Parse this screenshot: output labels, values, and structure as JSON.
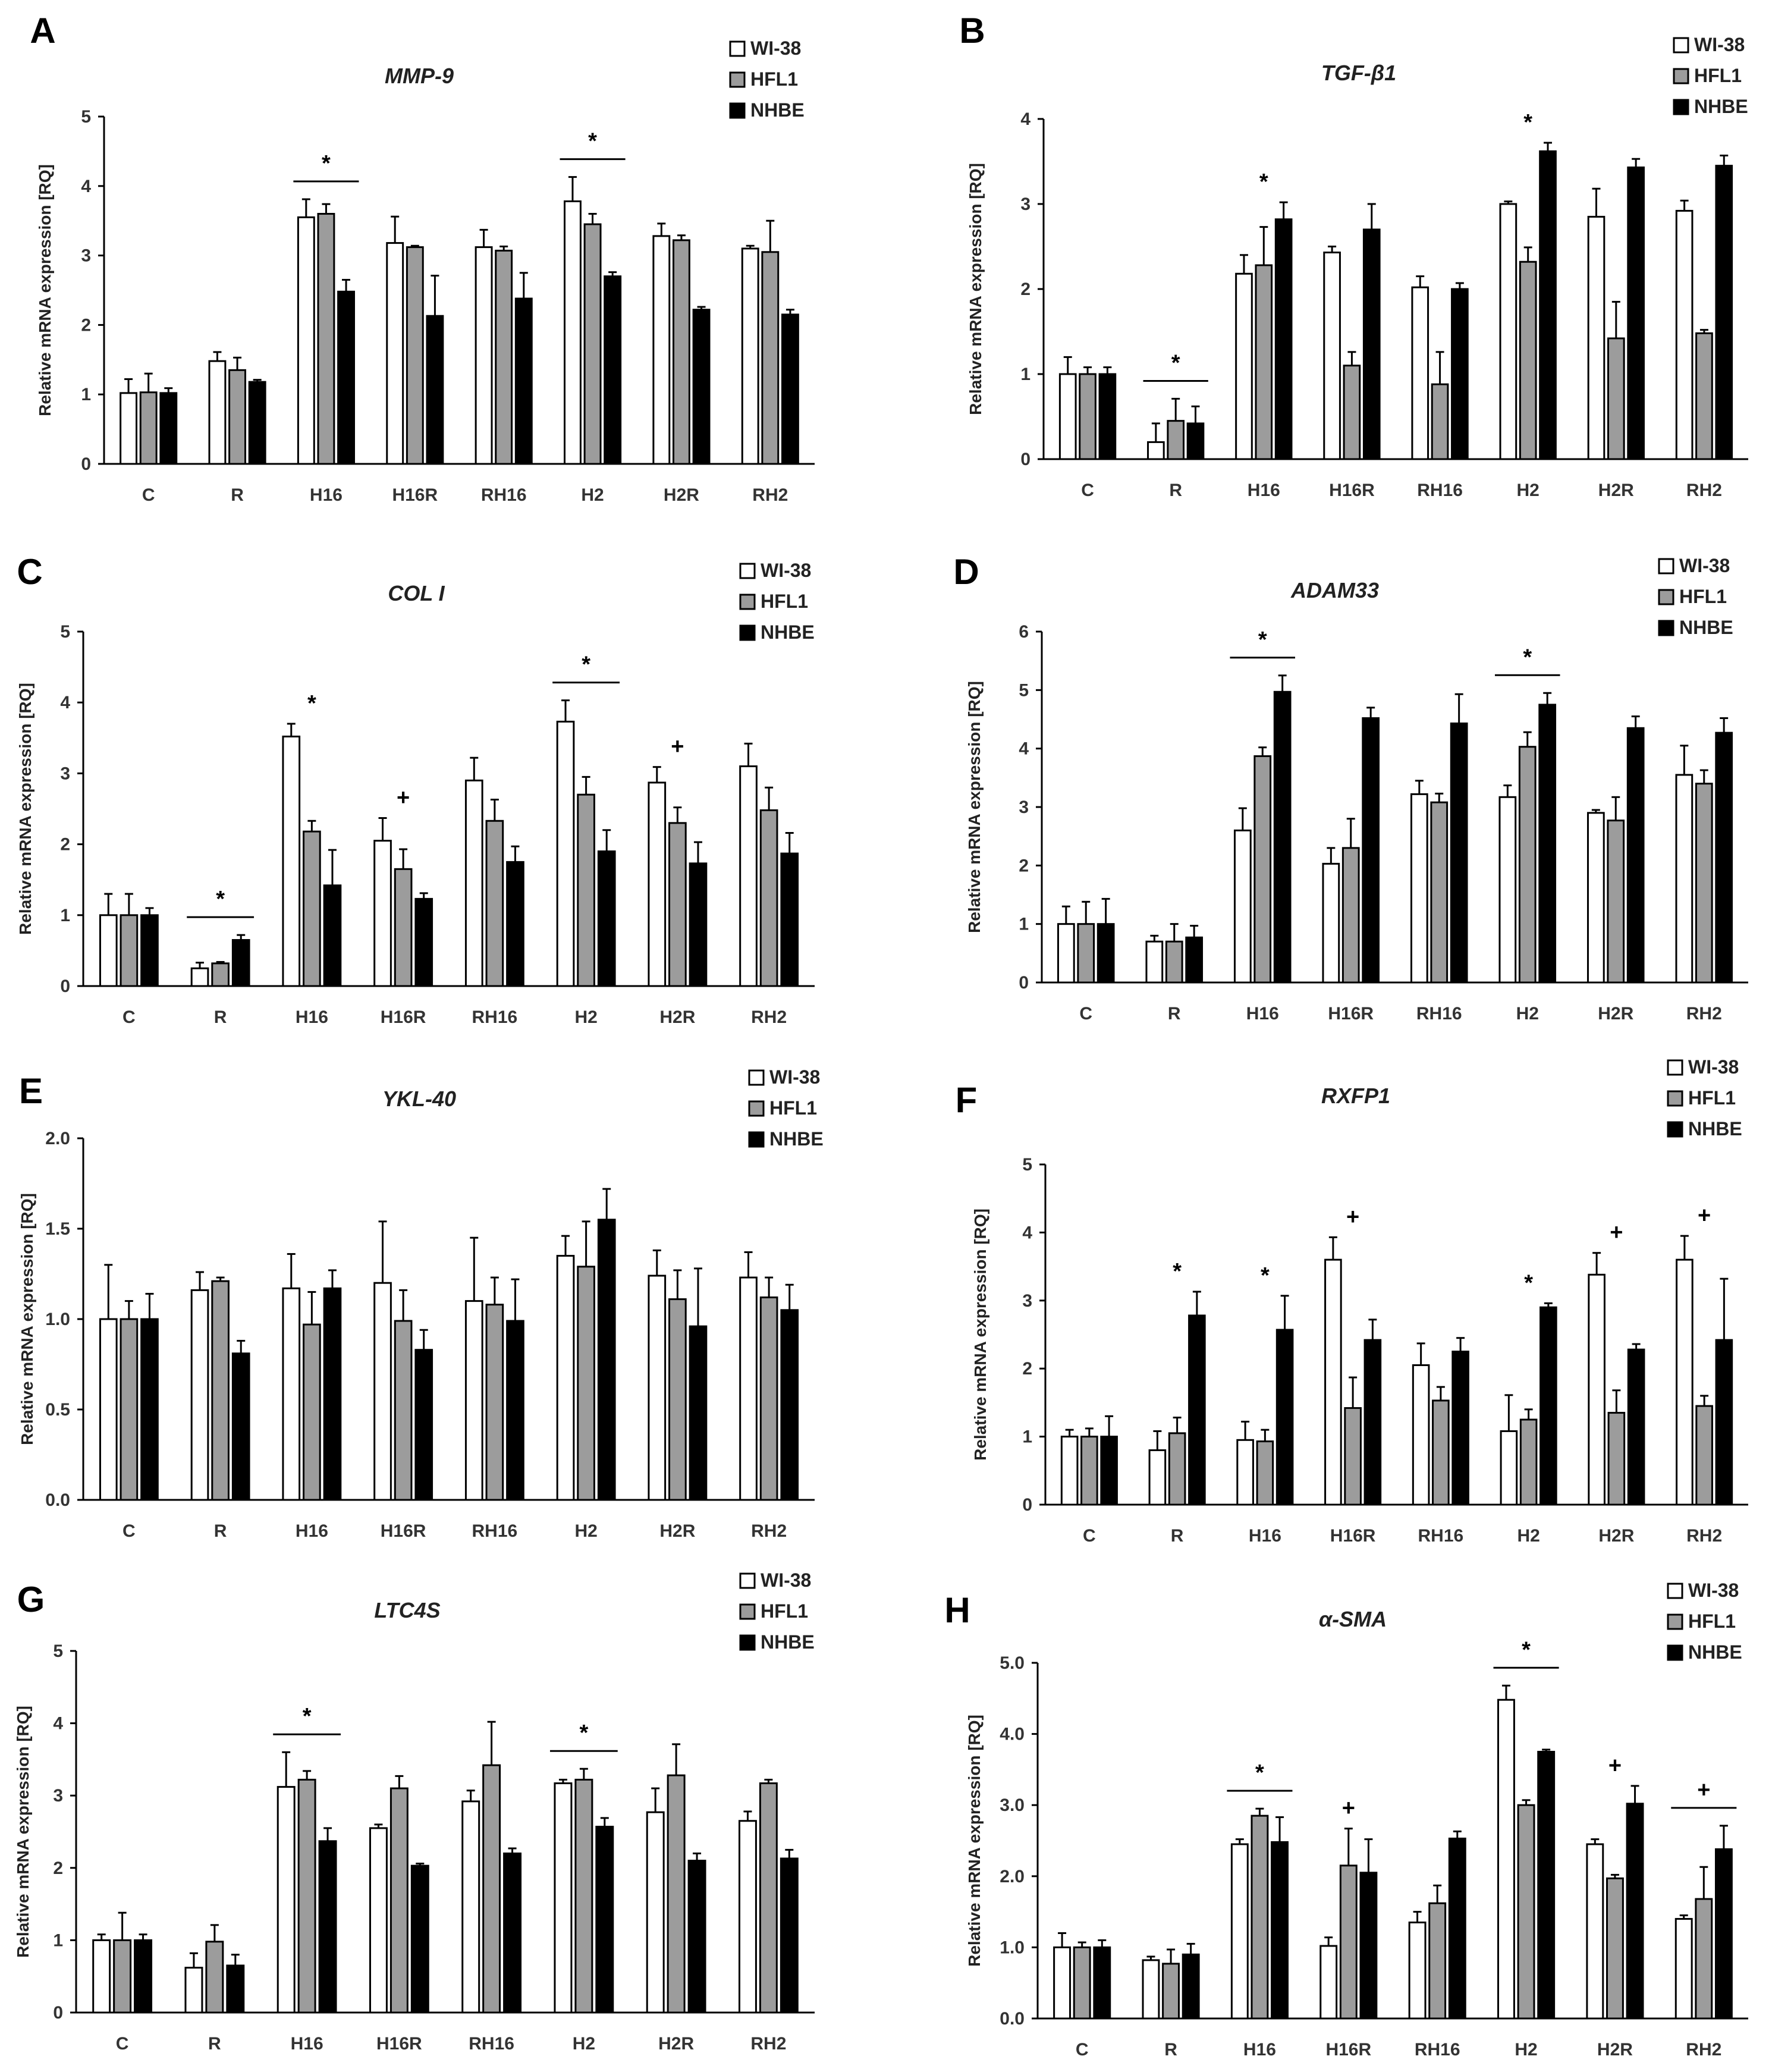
{
  "colors": {
    "WI-38": "#ffffff",
    "HFL1": "#9c9c9c",
    "NHBE": "#000000",
    "axis": "#000000"
  },
  "chart_data": [
    {
      "panel": "A",
      "type": "bar",
      "title": "MMP-9",
      "ylabel": "Relative mRNA expression [RQ]",
      "categories": [
        "C",
        "R",
        "H16",
        "H16R",
        "RH16",
        "H2",
        "H2R",
        "RH2"
      ],
      "ylim": [
        0,
        5
      ],
      "yticks": [
        "0",
        "1",
        "2",
        "3",
        "4",
        "5"
      ],
      "legend": [
        "WI-38",
        "HFL1",
        "NHBE"
      ],
      "series": [
        {
          "name": "WI-38",
          "values": [
            1.02,
            1.48,
            3.55,
            3.18,
            3.12,
            3.78,
            3.28,
            3.1
          ],
          "errors": [
            0.2,
            0.13,
            0.26,
            0.38,
            0.25,
            0.35,
            0.18,
            0.04
          ]
        },
        {
          "name": "HFL1",
          "values": [
            1.03,
            1.35,
            3.6,
            3.12,
            3.07,
            3.45,
            3.22,
            3.05
          ],
          "errors": [
            0.27,
            0.18,
            0.14,
            0.02,
            0.06,
            0.15,
            0.07,
            0.45
          ]
        },
        {
          "name": "NHBE",
          "values": [
            1.02,
            1.18,
            2.48,
            2.13,
            2.38,
            2.7,
            2.22,
            2.15
          ],
          "errors": [
            0.07,
            0.03,
            0.17,
            0.58,
            0.37,
            0.06,
            0.04,
            0.07
          ]
        }
      ],
      "annotations": [
        {
          "text": "*",
          "category": "H16",
          "line": true
        },
        {
          "text": "*",
          "category": "H2",
          "line": true
        }
      ]
    },
    {
      "panel": "B",
      "type": "bar",
      "title": "TGF-β1",
      "ylabel": "Relative mRNA expression [RQ]",
      "categories": [
        "C",
        "R",
        "H16",
        "H16R",
        "RH16",
        "H2",
        "H2R",
        "RH2"
      ],
      "ylim": [
        0,
        4
      ],
      "yticks": [
        "0",
        "1",
        "2",
        "3",
        "4"
      ],
      "legend": [
        "WI-38",
        "HFL1",
        "NHBE"
      ],
      "series": [
        {
          "name": "WI-38",
          "values": [
            1.0,
            0.2,
            2.18,
            2.43,
            2.02,
            3.0,
            2.85,
            2.92
          ],
          "errors": [
            0.2,
            0.22,
            0.22,
            0.07,
            0.13,
            0.03,
            0.33,
            0.12
          ]
        },
        {
          "name": "HFL1",
          "values": [
            1.0,
            0.45,
            2.28,
            1.1,
            0.88,
            2.32,
            1.42,
            1.48
          ],
          "errors": [
            0.08,
            0.26,
            0.45,
            0.16,
            0.38,
            0.17,
            0.43,
            0.04
          ]
        },
        {
          "name": "NHBE",
          "values": [
            1.0,
            0.42,
            2.82,
            2.7,
            2.0,
            3.62,
            3.43,
            3.45
          ],
          "errors": [
            0.08,
            0.2,
            0.2,
            0.3,
            0.07,
            0.1,
            0.1,
            0.12
          ]
        }
      ],
      "annotations": [
        {
          "text": "*",
          "category": "R",
          "line": true
        },
        {
          "text": "*",
          "category": "H16",
          "line": false
        },
        {
          "text": "*",
          "category": "H2",
          "line": false
        }
      ]
    },
    {
      "panel": "C",
      "type": "bar",
      "title": "COL I",
      "ylabel": "Relative mRNA expression [RQ]",
      "categories": [
        "C",
        "R",
        "H16",
        "H16R",
        "RH16",
        "H2",
        "H2R",
        "RH2"
      ],
      "ylim": [
        0,
        5
      ],
      "yticks": [
        "0",
        "1",
        "2",
        "3",
        "4",
        "5"
      ],
      "legend": [
        "WI-38",
        "HFL1",
        "NHBE"
      ],
      "series": [
        {
          "name": "WI-38",
          "values": [
            1.0,
            0.25,
            3.52,
            2.05,
            2.9,
            3.73,
            2.87,
            3.1
          ],
          "errors": [
            0.3,
            0.08,
            0.18,
            0.32,
            0.32,
            0.3,
            0.22,
            0.32
          ]
        },
        {
          "name": "HFL1",
          "values": [
            1.0,
            0.32,
            2.18,
            1.65,
            2.33,
            2.7,
            2.3,
            2.48
          ],
          "errors": [
            0.3,
            0.02,
            0.15,
            0.28,
            0.3,
            0.25,
            0.22,
            0.32
          ]
        },
        {
          "name": "NHBE",
          "values": [
            1.0,
            0.65,
            1.42,
            1.23,
            1.75,
            1.9,
            1.73,
            1.87
          ],
          "errors": [
            0.1,
            0.07,
            0.5,
            0.08,
            0.22,
            0.3,
            0.3,
            0.29
          ]
        }
      ],
      "annotations": [
        {
          "text": "*",
          "category": "R",
          "line": true
        },
        {
          "text": "*",
          "category": "H16",
          "line": false
        },
        {
          "text": "+",
          "category": "H16R",
          "line": false
        },
        {
          "text": "*",
          "category": "H2",
          "line": true
        },
        {
          "text": "+",
          "category": "H2R",
          "line": false
        }
      ]
    },
    {
      "panel": "D",
      "type": "bar",
      "title": "ADAM33",
      "ylabel": "Relative mRNA expression [RQ]",
      "categories": [
        "C",
        "R",
        "H16",
        "H16R",
        "RH16",
        "H2",
        "H2R",
        "RH2"
      ],
      "ylim": [
        0,
        6
      ],
      "yticks": [
        "0",
        "1",
        "2",
        "3",
        "4",
        "5",
        "6"
      ],
      "legend": [
        "WI-38",
        "HFL1",
        "NHBE"
      ],
      "series": [
        {
          "name": "WI-38",
          "values": [
            1.0,
            0.7,
            2.6,
            2.03,
            3.22,
            3.17,
            2.9,
            3.55
          ],
          "errors": [
            0.3,
            0.1,
            0.38,
            0.27,
            0.23,
            0.2,
            0.05,
            0.5
          ]
        },
        {
          "name": "HFL1",
          "values": [
            1.0,
            0.7,
            3.87,
            2.3,
            3.08,
            4.03,
            2.77,
            3.4
          ],
          "errors": [
            0.38,
            0.3,
            0.15,
            0.5,
            0.15,
            0.25,
            0.4,
            0.23
          ]
        },
        {
          "name": "NHBE",
          "values": [
            1.0,
            0.77,
            4.97,
            4.52,
            4.43,
            4.75,
            4.35,
            4.27
          ],
          "errors": [
            0.43,
            0.2,
            0.28,
            0.18,
            0.5,
            0.2,
            0.2,
            0.25
          ]
        }
      ],
      "annotations": [
        {
          "text": "*",
          "category": "H16",
          "line": true
        },
        {
          "text": "*",
          "category": "H2",
          "line": true
        }
      ]
    },
    {
      "panel": "E",
      "type": "bar",
      "title": "YKL-40",
      "ylabel": "Relative mRNA expression [RQ]",
      "categories": [
        "C",
        "R",
        "H16",
        "H16R",
        "RH16",
        "H2",
        "H2R",
        "RH2"
      ],
      "ylim": [
        0,
        2
      ],
      "yticks": [
        "0.0",
        "0.5",
        "1.0",
        "1.5",
        "2.0"
      ],
      "legend": [
        "WI-38",
        "HFL1",
        "NHBE"
      ],
      "series": [
        {
          "name": "WI-38",
          "values": [
            1.0,
            1.16,
            1.17,
            1.2,
            1.1,
            1.35,
            1.24,
            1.23
          ],
          "errors": [
            0.3,
            0.1,
            0.19,
            0.34,
            0.35,
            0.11,
            0.14,
            0.14
          ]
        },
        {
          "name": "HFL1",
          "values": [
            1.0,
            1.21,
            0.97,
            0.99,
            1.08,
            1.29,
            1.11,
            1.12
          ],
          "errors": [
            0.1,
            0.02,
            0.18,
            0.17,
            0.15,
            0.25,
            0.16,
            0.11
          ]
        },
        {
          "name": "NHBE",
          "values": [
            1.0,
            0.81,
            1.17,
            0.83,
            0.99,
            1.55,
            0.96,
            1.05
          ],
          "errors": [
            0.14,
            0.07,
            0.1,
            0.11,
            0.23,
            0.17,
            0.32,
            0.14
          ]
        }
      ],
      "annotations": []
    },
    {
      "panel": "F",
      "type": "bar",
      "title": "RXFP1",
      "ylabel": "Relative mRNA expression [RQ]",
      "categories": [
        "C",
        "R",
        "H16",
        "H16R",
        "RH16",
        "H2",
        "H2R",
        "RH2"
      ],
      "ylim": [
        0,
        5
      ],
      "yticks": [
        "0",
        "1",
        "2",
        "3",
        "4",
        "5"
      ],
      "legend": [
        "WI-38",
        "HFL1",
        "NHBE"
      ],
      "series": [
        {
          "name": "WI-38",
          "values": [
            1.0,
            0.8,
            0.95,
            3.6,
            2.05,
            1.08,
            3.38,
            3.6
          ],
          "errors": [
            0.1,
            0.28,
            0.27,
            0.33,
            0.32,
            0.53,
            0.32,
            0.35
          ]
        },
        {
          "name": "HFL1",
          "values": [
            1.0,
            1.05,
            0.93,
            1.42,
            1.53,
            1.25,
            1.35,
            1.45
          ],
          "errors": [
            0.12,
            0.23,
            0.17,
            0.45,
            0.2,
            0.15,
            0.33,
            0.15
          ]
        },
        {
          "name": "NHBE",
          "values": [
            1.0,
            2.78,
            2.57,
            2.42,
            2.25,
            2.9,
            2.28,
            2.42
          ],
          "errors": [
            0.3,
            0.35,
            0.5,
            0.3,
            0.2,
            0.06,
            0.08,
            0.9
          ]
        }
      ],
      "annotations": [
        {
          "text": "*",
          "category": "R",
          "line": false
        },
        {
          "text": "*",
          "category": "H16",
          "line": false
        },
        {
          "text": "+",
          "category": "H16R",
          "line": false
        },
        {
          "text": "*",
          "category": "H2",
          "line": false
        },
        {
          "text": "+",
          "category": "H2R",
          "line": false
        },
        {
          "text": "+",
          "category": "RH2",
          "line": false
        }
      ]
    },
    {
      "panel": "G",
      "type": "bar",
      "title": "LTC4S",
      "ylabel": "Relative mRNA expression [RQ]",
      "categories": [
        "C",
        "R",
        "H16",
        "H16R",
        "RH16",
        "H2",
        "H2R",
        "RH2"
      ],
      "ylim": [
        0,
        5
      ],
      "yticks": [
        "0",
        "1",
        "2",
        "3",
        "4",
        "5"
      ],
      "legend": [
        "WI-38",
        "HFL1",
        "NHBE"
      ],
      "series": [
        {
          "name": "WI-38",
          "values": [
            1.0,
            0.62,
            3.12,
            2.55,
            2.92,
            3.17,
            2.77,
            2.65
          ],
          "errors": [
            0.08,
            0.2,
            0.48,
            0.05,
            0.15,
            0.05,
            0.33,
            0.13
          ]
        },
        {
          "name": "HFL1",
          "values": [
            1.0,
            0.98,
            3.22,
            3.1,
            3.42,
            3.22,
            3.28,
            3.17
          ],
          "errors": [
            0.38,
            0.23,
            0.12,
            0.17,
            0.6,
            0.15,
            0.43,
            0.05
          ]
        },
        {
          "name": "NHBE",
          "values": [
            1.0,
            0.65,
            2.37,
            2.03,
            2.2,
            2.57,
            2.1,
            2.13
          ],
          "errors": [
            0.08,
            0.15,
            0.18,
            0.03,
            0.07,
            0.12,
            0.1,
            0.12
          ]
        }
      ],
      "annotations": [
        {
          "text": "*",
          "category": "H16",
          "line": true
        },
        {
          "text": "*",
          "category": "H2",
          "line": true
        }
      ]
    },
    {
      "panel": "H",
      "type": "bar",
      "title": "α-SMA",
      "ylabel": "Relative mRNA expression [RQ]",
      "categories": [
        "C",
        "R",
        "H16",
        "H16R",
        "RH16",
        "H2",
        "H2R",
        "RH2"
      ],
      "ylim": [
        0,
        5
      ],
      "yticks": [
        "0.0",
        "1.0",
        "2.0",
        "3.0",
        "4.0",
        "5.0"
      ],
      "legend": [
        "WI-38",
        "HFL1",
        "NHBE"
      ],
      "series": [
        {
          "name": "WI-38",
          "values": [
            1.0,
            0.82,
            2.45,
            1.02,
            1.35,
            4.48,
            2.45,
            1.4
          ],
          "errors": [
            0.2,
            0.05,
            0.07,
            0.12,
            0.15,
            0.2,
            0.07,
            0.05
          ]
        },
        {
          "name": "HFL1",
          "values": [
            1.0,
            0.77,
            2.85,
            2.15,
            1.62,
            3.0,
            1.97,
            1.68
          ],
          "errors": [
            0.07,
            0.2,
            0.1,
            0.52,
            0.25,
            0.07,
            0.05,
            0.45
          ]
        },
        {
          "name": "NHBE",
          "values": [
            1.0,
            0.9,
            2.48,
            2.05,
            2.53,
            3.75,
            3.02,
            2.38
          ],
          "errors": [
            0.1,
            0.15,
            0.35,
            0.47,
            0.1,
            0.03,
            0.25,
            0.33
          ]
        }
      ],
      "annotations": [
        {
          "text": "*",
          "category": "H16",
          "line": true
        },
        {
          "text": "+",
          "category": "H16R",
          "line": false
        },
        {
          "text": "*",
          "category": "H2",
          "line": true
        },
        {
          "text": "+",
          "category": "H2R",
          "line": false
        },
        {
          "text": "+",
          "category": "RH2",
          "line": true
        }
      ]
    }
  ]
}
